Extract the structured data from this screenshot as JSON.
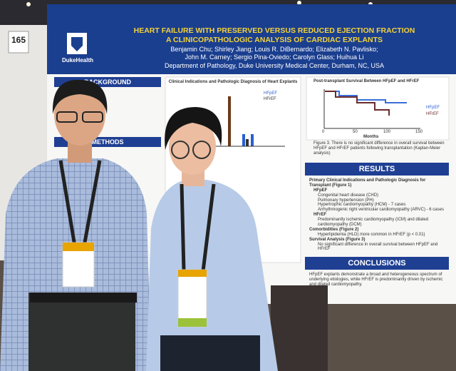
{
  "booth_number": "165",
  "poster": {
    "logo": "DukeHealth",
    "title": "HEART FAILURE WITH PRESERVED VERSUS REDUCED EJECTION FRACTION",
    "subtitle": "A CLINICOPATHOLOGIC ANALYSIS OF CARDIAC EXPLANTS",
    "authors": [
      "Benjamin Chu; Shirley Jiang; Louis R. DiBernardo; Elizabeth N. Pavlisko;",
      "John M. Carney; Sergio Pina-Oviedo; Carolyn Glass; Huihua Li"
    ],
    "affiliation": "Department of Pathology, Duke University Medical Center, Durham, NC, USA",
    "background": {
      "heading": "BACKGROUND"
    },
    "methods": {
      "heading": "METHODS"
    },
    "figure1": {
      "title": "Clinical Indications and Pathologic Diagnosis of Heart Explants",
      "legend": [
        "HFpEF",
        "HFrEF"
      ]
    },
    "figure3": {
      "title": "Post-transplant Survival Between HFpEF and HFrEF",
      "legend": [
        "HFpEF",
        "HFrEF"
      ],
      "x_label": "Months",
      "x_ticks": [
        "0",
        "50",
        "100",
        "150"
      ],
      "caption": "Figure 3. There is no significant difference in overall survival between HFpEF and HFrEF patients following transplantation (Kaplan-Meier analysis)"
    },
    "results": {
      "heading": "RESULTS",
      "items": [
        "Primary Clinical Indications and Pathologic Diagnosis for Transplant (Figure 1)",
        "HFpEF",
        "Congenital heart disease (CHD)",
        "Pulmonary hypertension (PH)",
        "Hypertrophic cardiomyopathy (HCM) - 7 cases",
        "Arrhythmogenic right ventricular cardiomyopathy (ARVC) - 6 cases",
        "HFrEF",
        "Predominantly ischemic cardiomyopathy (ICM) and dilated cardiomyopathy (DCM)",
        "Comorbidities (Figure 2)",
        "Hyperlipidemia (HLD) more common in HFrEF (p < 0.01)",
        "Survival Analysis (Figure 3)",
        "No significant difference in overall survival between HFpEF and HFrEF"
      ]
    },
    "conclusions": {
      "heading": "CONCLUSIONS",
      "text": "HFpEF explants demonstrate a broad and heterogeneous spectrum of underlying etiologies, while HFrEF is predominantly driven by ischemic and dilated cardiomyopathy."
    }
  }
}
